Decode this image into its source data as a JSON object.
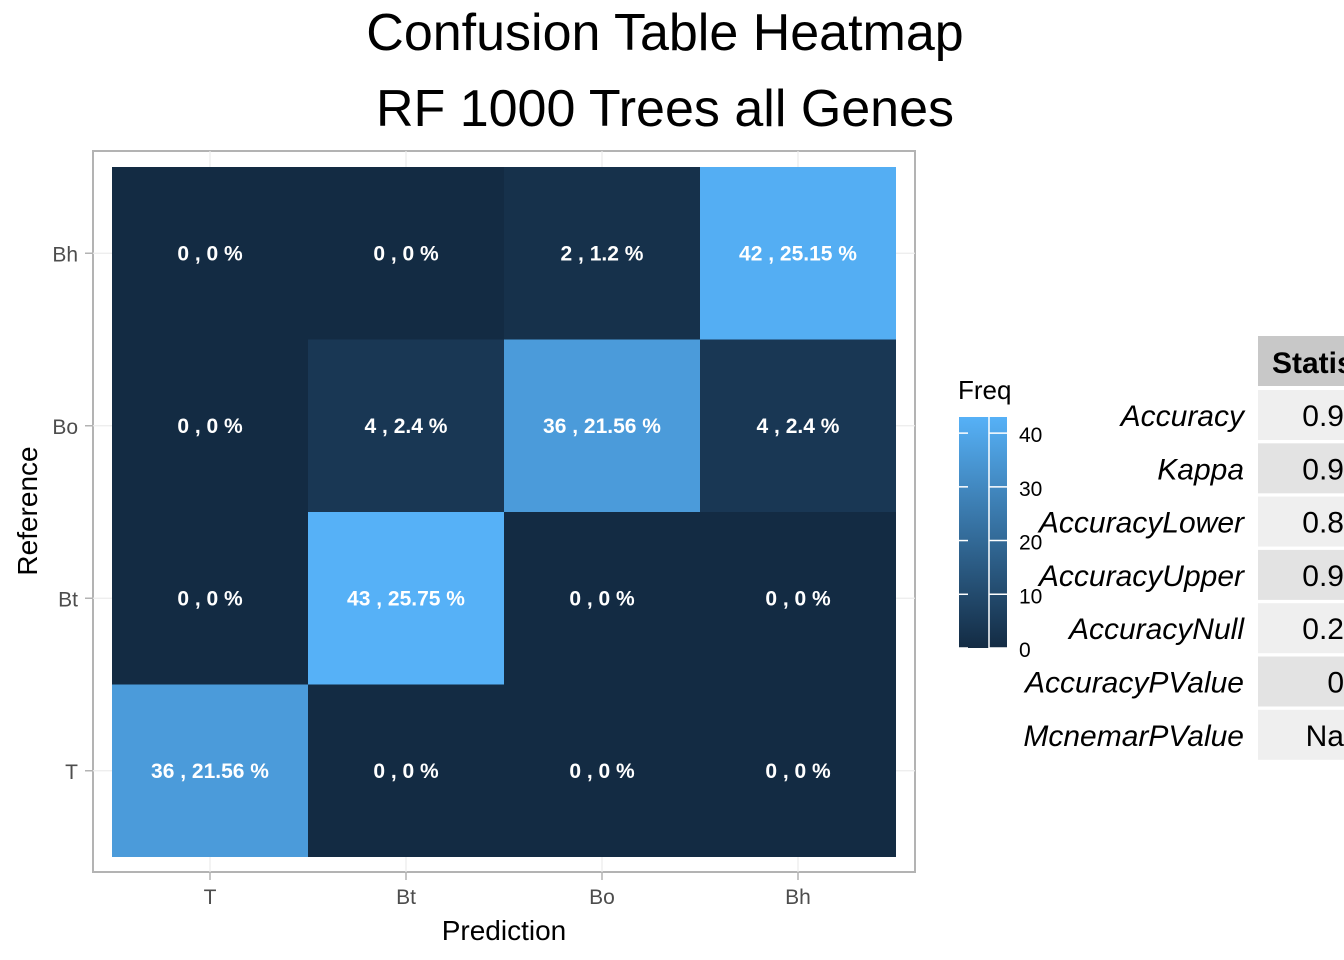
{
  "title": "Confusion Table Heatmap",
  "subtitle": "RF 1000 Trees all Genes",
  "chart_data": {
    "type": "heatmap",
    "x_categories": [
      "T",
      "Bt",
      "Bo",
      "Bh"
    ],
    "y_categories": [
      "Bh",
      "Bo",
      "Bt",
      "T"
    ],
    "xlabel": "Prediction",
    "ylabel": "Reference",
    "cells": [
      {
        "reference": "Bh",
        "prediction": "T",
        "freq": 0,
        "label": "0 , 0 %"
      },
      {
        "reference": "Bh",
        "prediction": "Bt",
        "freq": 0,
        "label": "0 , 0 %"
      },
      {
        "reference": "Bh",
        "prediction": "Bo",
        "freq": 2,
        "label": "2 , 1.2 %"
      },
      {
        "reference": "Bh",
        "prediction": "Bh",
        "freq": 42,
        "label": "42 , 25.15 %"
      },
      {
        "reference": "Bo",
        "prediction": "T",
        "freq": 0,
        "label": "0 , 0 %"
      },
      {
        "reference": "Bo",
        "prediction": "Bt",
        "freq": 4,
        "label": "4 , 2.4 %"
      },
      {
        "reference": "Bo",
        "prediction": "Bo",
        "freq": 36,
        "label": "36 , 21.56 %"
      },
      {
        "reference": "Bo",
        "prediction": "Bh",
        "freq": 4,
        "label": "4 , 2.4 %"
      },
      {
        "reference": "Bt",
        "prediction": "T",
        "freq": 0,
        "label": "0 , 0 %"
      },
      {
        "reference": "Bt",
        "prediction": "Bt",
        "freq": 43,
        "label": "43 , 25.75 %"
      },
      {
        "reference": "Bt",
        "prediction": "Bo",
        "freq": 0,
        "label": "0 , 0 %"
      },
      {
        "reference": "Bt",
        "prediction": "Bh",
        "freq": 0,
        "label": "0 , 0 %"
      },
      {
        "reference": "T",
        "prediction": "T",
        "freq": 36,
        "label": "36 , 21.56 %"
      },
      {
        "reference": "T",
        "prediction": "Bt",
        "freq": 0,
        "label": "0 , 0 %"
      },
      {
        "reference": "T",
        "prediction": "Bo",
        "freq": 0,
        "label": "0 , 0 %"
      },
      {
        "reference": "T",
        "prediction": "Bh",
        "freq": 0,
        "label": "0 , 0 %"
      }
    ],
    "legend": {
      "title": "Freq",
      "ticks": [
        0,
        10,
        20,
        30,
        40
      ],
      "range": [
        0,
        43
      ],
      "low_color": "#132B43",
      "high_color": "#56B1F7"
    }
  },
  "stats_table": {
    "header": "Statis",
    "rows": [
      {
        "name": "Accuracy",
        "value": "0.9"
      },
      {
        "name": "Kappa",
        "value": "0.9"
      },
      {
        "name": "AccuracyLower",
        "value": "0.8"
      },
      {
        "name": "AccuracyUpper",
        "value": "0.9"
      },
      {
        "name": "AccuracyNull",
        "value": "0.2"
      },
      {
        "name": "AccuracyPValue",
        "value": "0"
      },
      {
        "name": "McnemarPValue",
        "value": "Na"
      }
    ]
  }
}
